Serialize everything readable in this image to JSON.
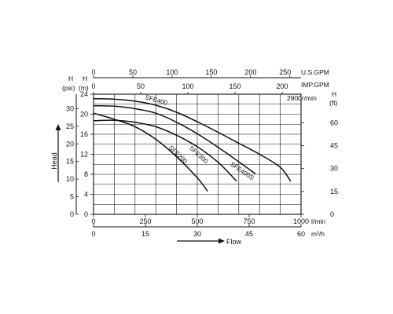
{
  "chart_data": {
    "type": "line",
    "title": "",
    "speed_label": "2900r/min",
    "flow_axes": [
      {
        "unit_label": "l/min",
        "ticks": [
          "0",
          "250",
          "500",
          "750",
          "1000"
        ],
        "range": [
          0,
          1000
        ]
      },
      {
        "unit_label": "m³/h",
        "ticks": [
          "0",
          "15",
          "30",
          "45",
          "60"
        ],
        "range": [
          0,
          60
        ]
      },
      {
        "unit_label": "U.S.GPM",
        "ticks": [
          "0",
          "50",
          "100",
          "150",
          "200",
          "250"
        ],
        "range": [
          0,
          264.2
        ]
      },
      {
        "unit_label": "IMP.GPM",
        "ticks": [
          "0",
          "50",
          "100",
          "150",
          "200"
        ],
        "range": [
          0,
          220
        ]
      }
    ],
    "head_axes": [
      {
        "unit_label": "(m)",
        "unit_top": "H",
        "ticks": [
          "0",
          "4",
          "8",
          "12",
          "16",
          "20",
          "24"
        ],
        "range": [
          0,
          24
        ]
      },
      {
        "unit_label": "(psi)",
        "unit_top": "H",
        "ticks": [
          "0",
          "5",
          "10",
          "15",
          "20",
          "25",
          "30"
        ],
        "range": [
          0,
          34.1
        ]
      },
      {
        "unit_label": "(ft)",
        "unit_top": "H",
        "ticks": [
          "0",
          "15",
          "30",
          "45",
          "60"
        ],
        "range": [
          0,
          78.7
        ]
      }
    ],
    "xlabel": "Flow",
    "ylabel": "Head",
    "grid": true,
    "series": [
      {
        "name": "SFE400",
        "x_unit": "l/min",
        "x": [
          0,
          100,
          200,
          300,
          400,
          500,
          600,
          700,
          800,
          900,
          950
        ],
        "y": [
          23.1,
          23.0,
          22.6,
          21.8,
          20.4,
          18.5,
          16.4,
          14.2,
          12.0,
          9.4,
          6.6
        ]
      },
      {
        "name": "SFE400S",
        "x_unit": "l/min",
        "x": [
          0,
          100,
          200,
          300,
          400,
          500,
          600,
          700,
          780
        ],
        "y": [
          21.7,
          21.6,
          21.1,
          20.2,
          18.4,
          16.1,
          13.4,
          10.5,
          8.1
        ]
      },
      {
        "name": "SFE300",
        "x_unit": "l/min",
        "x": [
          0,
          100,
          200,
          300,
          400,
          500,
          600,
          690
        ],
        "y": [
          18.7,
          18.8,
          18.4,
          17.5,
          15.8,
          13.5,
          10.4,
          6.6
        ]
      },
      {
        "name": "SFE200",
        "x_unit": "l/min",
        "x": [
          0,
          100,
          200,
          300,
          400,
          500,
          550
        ],
        "y": [
          20.2,
          19.0,
          17.5,
          15.0,
          11.5,
          7.3,
          4.6
        ]
      }
    ]
  }
}
